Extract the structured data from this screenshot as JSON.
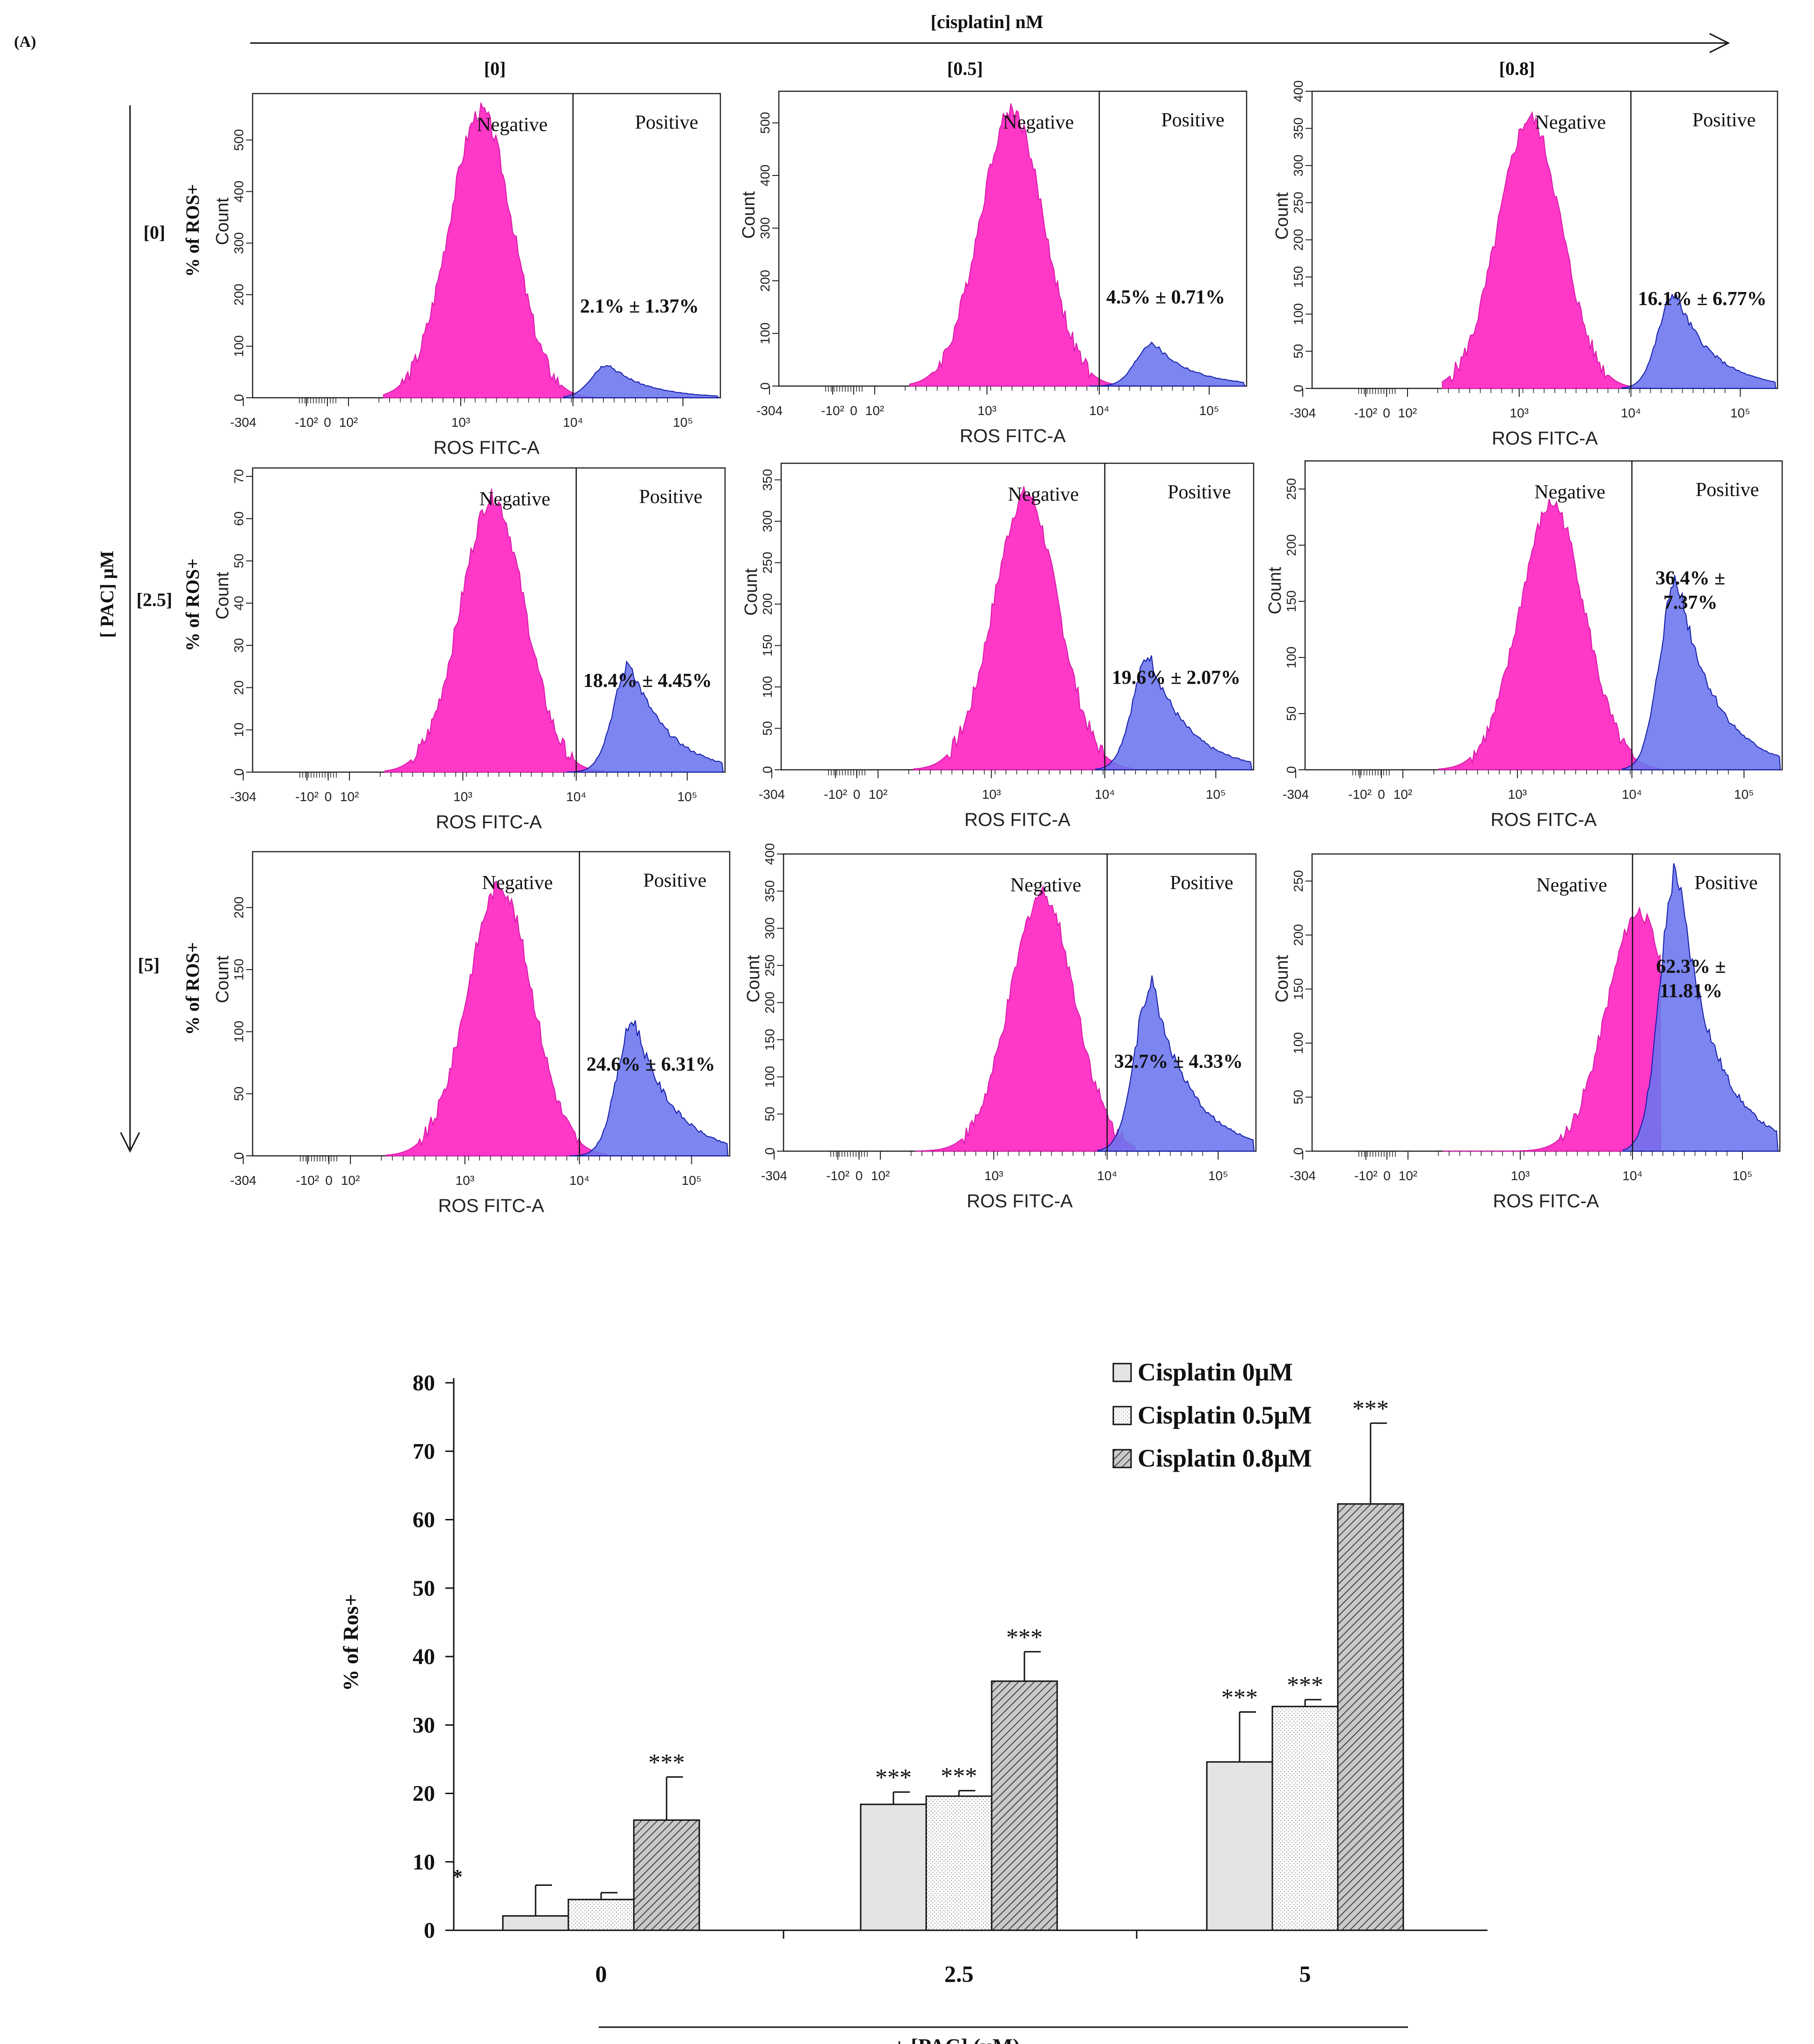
{
  "panel_label": "(A)",
  "cisplatin_header": "[cisplatin] nM",
  "pac_header": "[ PAC] μM",
  "column_labels": [
    "[0]",
    "[0.5]",
    "[0.8]"
  ],
  "row_labels": [
    "[0]",
    "[2.5]",
    "[5]"
  ],
  "histogram_ylabel_left": "% of ROS+",
  "histogram_ylabel": "Count",
  "histogram_xlabel": "ROS FITC-A",
  "gate_negative": "Negative",
  "gate_positive": "Positive",
  "x_tick_labels": [
    "-304",
    "-10²",
    "0",
    "10²",
    "10³",
    "10⁴",
    "10⁵"
  ],
  "colors": {
    "negative_fill": "#ff38c8",
    "negative_line": "#d81aa8",
    "positive_fill": "#6a74ee",
    "positive_line": "#121aa8",
    "annotation_text": "#1d8ad0"
  },
  "histograms": [
    {
      "row": "[0]",
      "col": "[0]",
      "annotation": "2.1% ± 1.37%",
      "y_ticks": [
        "0",
        "100",
        "200",
        "300",
        "400",
        "500"
      ],
      "y_max": 590
    },
    {
      "row": "[0]",
      "col": "[0.5]",
      "annotation": "4.5% ± 0.71%",
      "y_ticks": [
        "0",
        "100",
        "200",
        "300",
        "400",
        "500"
      ],
      "y_max": 560
    },
    {
      "row": "[0]",
      "col": "[0.8]",
      "annotation": "16.1% ± 6.77%",
      "y_ticks": [
        "0",
        "50",
        "100",
        "150",
        "200",
        "250",
        "300",
        "350",
        "400"
      ],
      "y_max": 400
    },
    {
      "row": "[2.5]",
      "col": "[0]",
      "annotation": "18.4% ± 4.45%",
      "y_ticks": [
        "0",
        "10",
        "20",
        "30",
        "40",
        "50",
        "60",
        "70"
      ],
      "y_max": 72
    },
    {
      "row": "[2.5]",
      "col": "[0.5]",
      "annotation": "19.6% ± 2.07%",
      "y_ticks": [
        "0",
        "50",
        "100",
        "150",
        "200",
        "250",
        "300",
        "350"
      ],
      "y_max": 370
    },
    {
      "row": "[2.5]",
      "col": "[0.8]",
      "annotation_lines": [
        "36.4% ±",
        "7.37%"
      ],
      "y_ticks": [
        "0",
        "50",
        "100",
        "150",
        "200",
        "250"
      ],
      "y_max": 275
    },
    {
      "row": "[5]",
      "col": "[0]",
      "annotation": "24.6% ± 6.31%",
      "y_ticks": [
        "0",
        "50",
        "100",
        "150",
        "200"
      ],
      "y_max": 245
    },
    {
      "row": "[5]",
      "col": "[0.5]",
      "annotation": "32.7% ± 4.33%",
      "y_ticks": [
        "0",
        "50",
        "100",
        "150",
        "200",
        "250",
        "300",
        "350",
        "400"
      ],
      "y_max": 400
    },
    {
      "row": "[5]",
      "col": "[0.8]",
      "annotation_lines": [
        "62.3% ±",
        "11.81%"
      ],
      "y_ticks": [
        "0",
        "50",
        "100",
        "150",
        "200",
        "250"
      ],
      "y_max": 275
    }
  ],
  "chart_data": {
    "type": "bar",
    "title": "",
    "categories": [
      "0",
      "2.5",
      "5"
    ],
    "xlabel": "+ [PAC]  (μM)",
    "ylabel": "% of Ros+",
    "ylim": [
      0,
      80
    ],
    "y_ticks": [
      "0",
      "10",
      "20",
      "30",
      "40",
      "50",
      "60",
      "70",
      "80"
    ],
    "significance_label": "***",
    "stray_mark": "*",
    "legend_position": "top-right",
    "series": [
      {
        "name": "Cisplatin 0μM",
        "color": "#e4e4e4",
        "values": [
          2.1,
          18.4,
          24.6
        ],
        "errors": [
          4.5,
          1.8,
          7.3
        ],
        "significance": [
          "",
          "***",
          "***"
        ]
      },
      {
        "name": "Cisplatin 0.5μM",
        "color": "#f7f7f7",
        "values": [
          4.5,
          19.6,
          32.7
        ],
        "errors": [
          1.0,
          0.8,
          1.0
        ],
        "significance": [
          "",
          "***",
          "***"
        ]
      },
      {
        "name": "Cisplatin 0.8μM",
        "color": "#b8b8b8",
        "values": [
          16.1,
          36.4,
          62.3
        ],
        "errors": [
          6.3,
          4.3,
          11.8
        ],
        "significance": [
          "***",
          "***",
          "***"
        ]
      }
    ]
  }
}
